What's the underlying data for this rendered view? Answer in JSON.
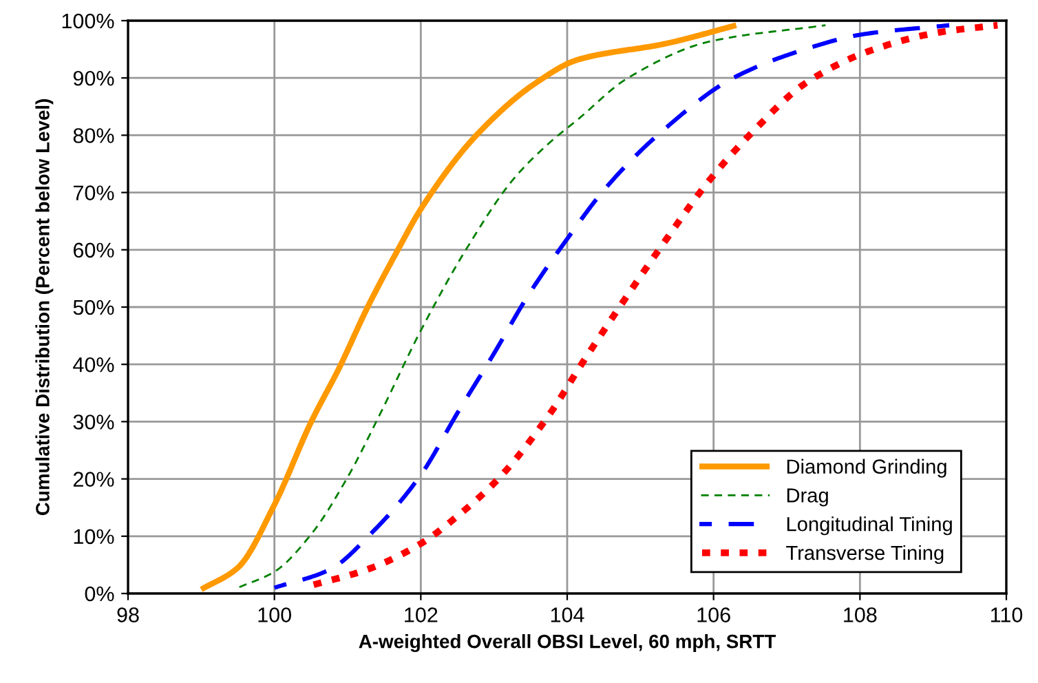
{
  "chart_data": {
    "type": "line",
    "xlabel": "A-weighted Overall OBSI Level, 60 mph, SRTT",
    "ylabel": "Cumulative Distribution (Percent below Level)",
    "xlim": [
      98,
      110
    ],
    "xticks": [
      98,
      100,
      102,
      104,
      106,
      108,
      110
    ],
    "ylim": [
      0,
      100
    ],
    "yticks": [
      {
        "value": 0,
        "label": "0%"
      },
      {
        "value": 10,
        "label": "10%"
      },
      {
        "value": 20,
        "label": "20%"
      },
      {
        "value": 30,
        "label": "30%"
      },
      {
        "value": 40,
        "label": "40%"
      },
      {
        "value": 50,
        "label": "50%"
      },
      {
        "value": 60,
        "label": "60%"
      },
      {
        "value": 70,
        "label": "70%"
      },
      {
        "value": 80,
        "label": "80%"
      },
      {
        "value": 90,
        "label": "90%"
      },
      {
        "value": 100,
        "label": "100%"
      }
    ],
    "grid": true,
    "legend": "bottom right",
    "marker": "none",
    "series": [
      {
        "name": "Diamond Grinding",
        "color": "#ff9900",
        "line_style": "solid",
        "x": [
          99.0,
          99.5,
          100.0,
          100.5,
          100.89,
          101.27,
          101.7,
          102.0,
          102.76,
          103.58,
          104.15,
          105.35,
          106.31
        ],
        "values": [
          0.7,
          4.5,
          15.5,
          29.9,
          39.5,
          49.9,
          60.3,
          67.1,
          80,
          89.2,
          93.2,
          96.0,
          99.2
        ]
      },
      {
        "name": "Drag",
        "color": "#008000",
        "line_style": "dashed",
        "x": [
          99.5,
          100.0,
          100.5,
          101.0,
          101.45,
          102.0,
          102.63,
          103.27,
          103.76,
          104.15,
          104.83,
          105.96,
          107.53
        ],
        "values": [
          1.0,
          3.8,
          10.3,
          20.3,
          31.5,
          45.9,
          60.3,
          72.4,
          78.7,
          82.8,
          90.0,
          96.4,
          99.2
        ]
      },
      {
        "name": "Longitudinal Tining",
        "color": "#0000ff",
        "line_style": "dashed",
        "x": [
          100.0,
          100.76,
          101.33,
          102.0,
          102.5,
          103.0,
          103.46,
          104.0,
          104.52,
          105.27,
          106.27,
          107.2,
          108.03,
          109.22
        ],
        "values": [
          1.0,
          4.2,
          10.6,
          20.7,
          31.5,
          41.9,
          51.9,
          61.9,
          70.7,
          80.4,
          90.0,
          94.8,
          97.6,
          99.2
        ]
      },
      {
        "name": "Transverse Tining",
        "color": "#ff0000",
        "line_style": "dotted",
        "x": [
          100.5,
          101.27,
          102.0,
          102.5,
          103.08,
          103.77,
          104.21,
          104.71,
          105.27,
          105.96,
          106.52,
          107.27,
          108.15,
          109.1,
          109.88
        ],
        "values": [
          1.4,
          4.2,
          8.7,
          13.5,
          20.3,
          31.5,
          40.3,
          49.9,
          60.3,
          72.4,
          80.4,
          89.2,
          94.8,
          98.0,
          99.2
        ]
      }
    ]
  }
}
